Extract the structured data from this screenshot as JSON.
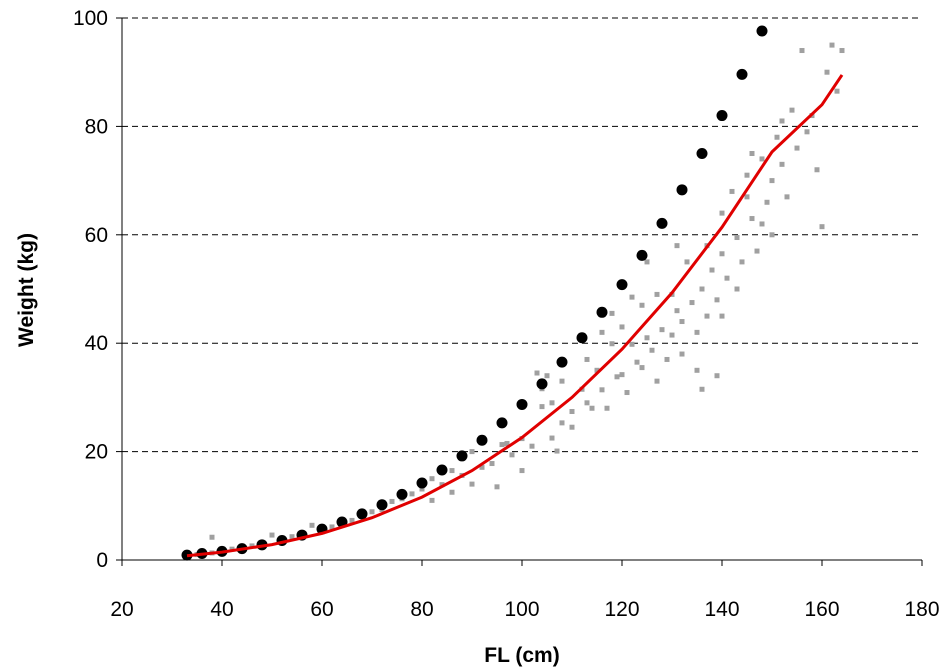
{
  "chart_data": {
    "type": "scatter",
    "title": "",
    "xlabel": "FL (cm)",
    "ylabel": "Weight (kg)",
    "xlim": [
      20,
      180
    ],
    "ylim": [
      0,
      100
    ],
    "xticks": [
      20,
      40,
      60,
      80,
      100,
      120,
      140,
      160,
      180
    ],
    "yticks": [
      0,
      20,
      40,
      60,
      80,
      100
    ],
    "grid": "horizontal dashed",
    "legend": "none",
    "colors": {
      "observed": "#a0a0a0",
      "predicted": "#000000",
      "fit": "#e00000"
    },
    "series": [
      {
        "kind": "scatter-small",
        "points": [
          [
            33,
            0.9
          ],
          [
            35,
            1.0
          ],
          [
            36,
            1.3
          ],
          [
            38,
            1.3
          ],
          [
            38,
            4.2
          ],
          [
            40,
            1.6
          ],
          [
            42,
            2.0
          ],
          [
            44,
            2.2
          ],
          [
            46,
            2.6
          ],
          [
            48,
            3.0
          ],
          [
            50,
            4.6
          ],
          [
            52,
            3.9
          ],
          [
            54,
            4.3
          ],
          [
            56,
            4.6
          ],
          [
            58,
            6.4
          ],
          [
            60,
            5.4
          ],
          [
            62,
            6.1
          ],
          [
            64,
            6.8
          ],
          [
            66,
            7.3
          ],
          [
            68,
            8.4
          ],
          [
            70,
            8.9
          ],
          [
            72,
            9.3
          ],
          [
            74,
            10.8
          ],
          [
            76,
            11.3
          ],
          [
            78,
            12.2
          ],
          [
            80,
            13.1
          ],
          [
            82,
            11.0
          ],
          [
            84,
            13.9
          ],
          [
            86,
            16.5
          ],
          [
            88,
            15.6
          ],
          [
            90,
            20.0
          ],
          [
            92,
            17.1
          ],
          [
            94,
            17.8
          ],
          [
            95,
            13.5
          ],
          [
            96,
            21.3
          ],
          [
            98,
            19.4
          ],
          [
            100,
            22.4
          ],
          [
            100,
            16.5
          ],
          [
            102,
            21.0
          ],
          [
            104,
            28.3
          ],
          [
            104,
            31.6
          ],
          [
            105,
            34.0
          ],
          [
            106,
            22.5
          ],
          [
            107,
            20.1
          ],
          [
            108,
            25.3
          ],
          [
            110,
            27.4
          ],
          [
            110,
            24.5
          ],
          [
            112,
            31.5
          ],
          [
            113,
            29.0
          ],
          [
            114,
            28.0
          ],
          [
            115,
            35.0
          ],
          [
            116,
            31.4
          ],
          [
            117,
            28.0
          ],
          [
            118,
            39.9
          ],
          [
            119,
            33.8
          ],
          [
            120,
            34.2
          ],
          [
            120,
            43.0
          ],
          [
            121,
            30.9
          ],
          [
            122,
            39.8
          ],
          [
            123,
            36.5
          ],
          [
            124,
            35.5
          ],
          [
            124,
            47.0
          ],
          [
            125,
            41.0
          ],
          [
            126,
            38.7
          ],
          [
            127,
            49.0
          ],
          [
            128,
            42.5
          ],
          [
            129,
            37.0
          ],
          [
            130,
            49.0
          ],
          [
            130,
            41.5
          ],
          [
            131,
            46.0
          ],
          [
            132,
            44.0
          ],
          [
            133,
            55.0
          ],
          [
            134,
            47.5
          ],
          [
            135,
            42.0
          ],
          [
            135,
            35.0
          ],
          [
            136,
            50.0
          ],
          [
            137,
            58.0
          ],
          [
            138,
            53.5
          ],
          [
            139,
            48.0
          ],
          [
            140,
            64.0
          ],
          [
            140,
            56.5
          ],
          [
            141,
            52.0
          ],
          [
            142,
            68.0
          ],
          [
            143,
            59.5
          ],
          [
            144,
            55.0
          ],
          [
            145,
            67.0
          ],
          [
            146,
            63.0
          ],
          [
            147,
            57.0
          ],
          [
            148,
            74.0
          ],
          [
            149,
            66.0
          ],
          [
            150,
            70.0
          ],
          [
            150,
            60.0
          ],
          [
            151,
            78.0
          ],
          [
            152,
            73.0
          ],
          [
            153,
            67.0
          ],
          [
            154,
            83.0
          ],
          [
            155,
            76.0
          ],
          [
            156,
            94.0
          ],
          [
            157,
            79.0
          ],
          [
            158,
            82.0
          ],
          [
            159,
            72.0
          ],
          [
            160,
            61.5
          ],
          [
            161,
            90.0
          ],
          [
            162,
            95.0
          ],
          [
            163,
            86.5
          ],
          [
            164,
            94.0
          ],
          [
            146,
            75.0
          ],
          [
            148,
            62.0
          ],
          [
            140,
            45.0
          ],
          [
            139,
            34.0
          ],
          [
            136,
            31.5
          ],
          [
            125,
            55.0
          ],
          [
            118,
            45.5
          ],
          [
            113,
            37.0
          ],
          [
            108,
            33.0
          ],
          [
            103,
            34.5
          ],
          [
            97,
            21.5
          ],
          [
            90,
            14.0
          ],
          [
            86,
            12.5
          ],
          [
            82,
            15.0
          ],
          [
            127,
            33.0
          ],
          [
            132,
            38.0
          ],
          [
            137,
            45.0
          ],
          [
            143,
            50.0
          ],
          [
            152,
            81.0
          ],
          [
            145,
            71.0
          ],
          [
            131,
            58.0
          ],
          [
            122,
            48.5
          ],
          [
            116,
            42.0
          ],
          [
            106,
            29.0
          ]
        ]
      },
      {
        "kind": "scatter-large",
        "points": [
          [
            33,
            0.9
          ],
          [
            36,
            1.2
          ],
          [
            40,
            1.6
          ],
          [
            44,
            2.1
          ],
          [
            48,
            2.8
          ],
          [
            52,
            3.6
          ],
          [
            56,
            4.6
          ],
          [
            60,
            5.7
          ],
          [
            64,
            7.0
          ],
          [
            68,
            8.5
          ],
          [
            72,
            10.2
          ],
          [
            76,
            12.1
          ],
          [
            80,
            14.2
          ],
          [
            84,
            16.6
          ],
          [
            88,
            19.2
          ],
          [
            92,
            22.1
          ],
          [
            96,
            25.3
          ],
          [
            100,
            28.7
          ],
          [
            104,
            32.5
          ],
          [
            108,
            36.5
          ],
          [
            112,
            41.0
          ],
          [
            116,
            45.7
          ],
          [
            120,
            50.8
          ],
          [
            124,
            56.2
          ],
          [
            128,
            62.1
          ],
          [
            132,
            68.3
          ],
          [
            136,
            75.0
          ],
          [
            140,
            82.0
          ],
          [
            144,
            89.6
          ],
          [
            148,
            97.6
          ]
        ]
      },
      {
        "kind": "fit-line",
        "points": [
          [
            33,
            0.8
          ],
          [
            40,
            1.45
          ],
          [
            50,
            2.85
          ],
          [
            60,
            4.9
          ],
          [
            70,
            7.8
          ],
          [
            80,
            11.6
          ],
          [
            90,
            16.5
          ],
          [
            100,
            22.6
          ],
          [
            110,
            30.0
          ],
          [
            120,
            38.9
          ],
          [
            130,
            49.3
          ],
          [
            140,
            61.4
          ],
          [
            150,
            75.3
          ],
          [
            160,
            84.0
          ],
          [
            164,
            89.5
          ]
        ]
      }
    ]
  }
}
